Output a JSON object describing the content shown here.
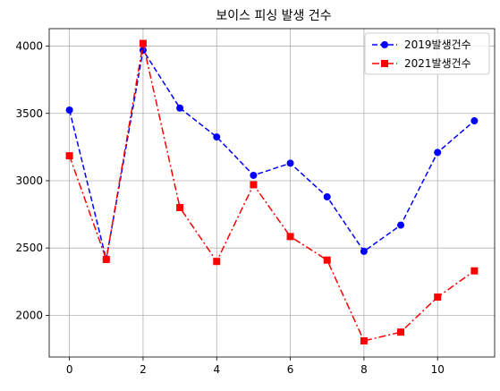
{
  "chart_data": {
    "type": "line",
    "title": "보이스 피싱 발생 건수",
    "xlabel": "",
    "ylabel": "",
    "x": [
      0,
      1,
      2,
      3,
      4,
      5,
      6,
      7,
      8,
      9,
      10,
      11
    ],
    "xlim": [
      -0.55,
      11.55
    ],
    "ylim": [
      1690,
      4130
    ],
    "xticks": [
      0,
      2,
      4,
      6,
      8,
      10
    ],
    "yticks": [
      2000,
      2500,
      3000,
      3500,
      4000
    ],
    "grid": true,
    "legend_position": "top-right",
    "series": [
      {
        "name": "2019발생건수",
        "color": "#0000ff",
        "linestyle": "dashed",
        "marker": "circle",
        "values": [
          3525,
          2415,
          3970,
          3540,
          3325,
          3040,
          3130,
          2880,
          2475,
          2670,
          3210,
          3445
        ]
      },
      {
        "name": "2021발생건수",
        "color": "#ff0000",
        "linestyle": "dashdot",
        "marker": "square",
        "values": [
          3185,
          2415,
          4020,
          2800,
          2400,
          2970,
          2585,
          2410,
          1810,
          1875,
          2135,
          2330
        ]
      }
    ]
  }
}
